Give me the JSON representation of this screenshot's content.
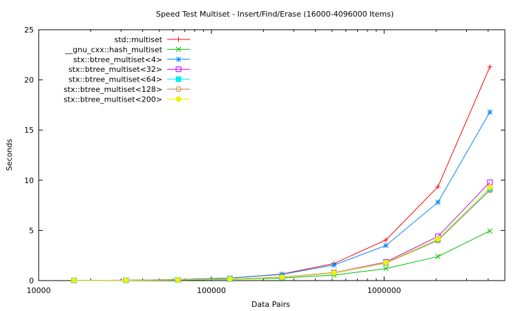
{
  "chart_data": {
    "type": "line",
    "title": "Speed Test Multiset - Insert/Find/Erase (16000-4096000 Items)",
    "xlabel": "Data Pairs",
    "ylabel": "Seconds",
    "x_scale": "log",
    "xlim": [
      10000,
      5000000
    ],
    "ylim": [
      0,
      25
    ],
    "x_ticks": [
      10000,
      100000,
      1000000
    ],
    "x_tick_labels": [
      "10000",
      "100000",
      "1000000"
    ],
    "y_ticks": [
      0,
      5,
      10,
      15,
      20,
      25
    ],
    "y_tick_labels": [
      "0",
      "5",
      "10",
      "15",
      "20",
      "25"
    ],
    "grid": false,
    "legend_position": "top-left",
    "x": [
      16000,
      32000,
      64000,
      128000,
      256000,
      512000,
      1024000,
      2048000,
      4096000
    ],
    "series": [
      {
        "name": "std::multiset",
        "color": "#ff0000",
        "marker": "plus",
        "values": [
          0.02,
          0.04,
          0.1,
          0.25,
          0.65,
          1.7,
          4.05,
          9.35,
          21.3
        ]
      },
      {
        "name": "__gnu_cxx::hash_multiset",
        "color": "#00c000",
        "marker": "cross",
        "values": [
          0.01,
          0.02,
          0.05,
          0.12,
          0.25,
          0.55,
          1.2,
          2.4,
          4.95
        ]
      },
      {
        "name": "stx::btree_multiset<4>",
        "color": "#0080ff",
        "marker": "star",
        "values": [
          0.02,
          0.04,
          0.1,
          0.25,
          0.62,
          1.55,
          3.5,
          7.8,
          16.8
        ]
      },
      {
        "name": "stx::btree_multiset<32>",
        "color": "#c000ff",
        "marker": "square-open",
        "values": [
          0.01,
          0.03,
          0.07,
          0.16,
          0.35,
          0.8,
          1.85,
          4.4,
          9.8
        ]
      },
      {
        "name": "stx::btree_multiset<64>",
        "color": "#00eeee",
        "marker": "square-filled",
        "values": [
          0.01,
          0.03,
          0.07,
          0.15,
          0.33,
          0.75,
          1.75,
          4.05,
          9.1
        ]
      },
      {
        "name": "stx::btree_multiset<128>",
        "color": "#c08040",
        "marker": "circle-open",
        "values": [
          0.01,
          0.03,
          0.07,
          0.15,
          0.33,
          0.75,
          1.75,
          4.0,
          9.0
        ]
      },
      {
        "name": "stx::btree_multiset<200>",
        "color": "#f0f000",
        "marker": "circle-filled",
        "values": [
          0.01,
          0.03,
          0.07,
          0.15,
          0.34,
          0.78,
          1.8,
          4.15,
          9.3
        ]
      }
    ]
  }
}
